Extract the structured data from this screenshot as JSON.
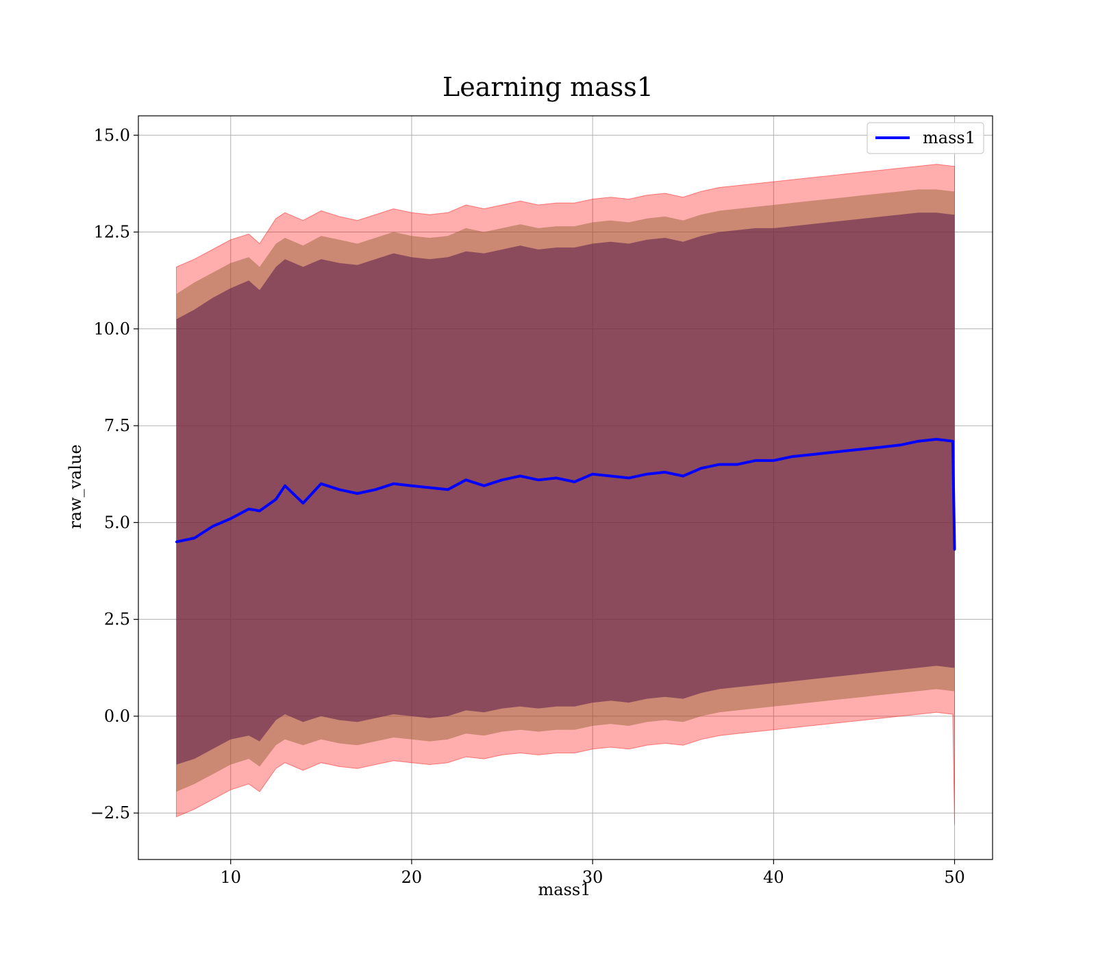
{
  "chart_data": {
    "type": "line",
    "title": "Learning mass1",
    "xlabel": "mass1",
    "ylabel": "raw_value",
    "xlim": [
      4.9,
      52.1
    ],
    "ylim": [
      -3.7,
      15.5
    ],
    "xticks": [
      10,
      20,
      30,
      40,
      50
    ],
    "yticks": [
      -2.5,
      0.0,
      2.5,
      5.0,
      7.5,
      10.0,
      12.5,
      15.0
    ],
    "ytick_labels": [
      "−2.5",
      "0.0",
      "2.5",
      "5.0",
      "7.5",
      "10.0",
      "12.5",
      "15.0"
    ],
    "grid": true,
    "legend": {
      "position": "top-right",
      "entries": [
        "mass1"
      ]
    },
    "colors": {
      "line": "#0000ff",
      "band_outer": "#ff0000",
      "band_middle": "#8b5a2b",
      "band_inner": "#5a1a4a"
    },
    "x": [
      7.0,
      8.0,
      9.0,
      10.0,
      11.0,
      11.6,
      12.5,
      13.0,
      14.0,
      15.0,
      16.0,
      17.0,
      18.0,
      19.0,
      20.0,
      21.0,
      22.0,
      23.0,
      24.0,
      25.0,
      26.0,
      27.0,
      28.0,
      29.0,
      30.0,
      31.0,
      32.0,
      33.0,
      34.0,
      35.0,
      36.0,
      37.0,
      38.0,
      39.0,
      40.0,
      41.0,
      42.0,
      43.0,
      44.0,
      45.0,
      46.0,
      47.0,
      48.0,
      49.0,
      49.9,
      50.0
    ],
    "series": [
      {
        "name": "mass1",
        "values": [
          4.5,
          4.6,
          4.9,
          5.1,
          5.35,
          5.3,
          5.6,
          5.95,
          5.5,
          6.0,
          5.85,
          5.75,
          5.85,
          6.0,
          5.95,
          5.9,
          5.85,
          6.1,
          5.95,
          6.1,
          6.2,
          6.1,
          6.15,
          6.05,
          6.25,
          6.2,
          6.15,
          6.25,
          6.3,
          6.2,
          6.4,
          6.5,
          6.5,
          6.6,
          6.6,
          6.7,
          6.75,
          6.8,
          6.85,
          6.9,
          6.95,
          7.0,
          7.1,
          7.15,
          7.1,
          4.3
        ],
        "band_outer_upper": [
          11.6,
          11.8,
          12.05,
          12.3,
          12.45,
          12.2,
          12.85,
          13.0,
          12.8,
          13.05,
          12.9,
          12.8,
          12.95,
          13.1,
          13.0,
          12.95,
          13.0,
          13.2,
          13.1,
          13.2,
          13.3,
          13.2,
          13.25,
          13.25,
          13.35,
          13.4,
          13.35,
          13.45,
          13.5,
          13.4,
          13.55,
          13.65,
          13.7,
          13.75,
          13.8,
          13.85,
          13.9,
          13.95,
          14.0,
          14.05,
          14.1,
          14.15,
          14.2,
          14.25,
          14.2,
          14.2
        ],
        "band_middle_upper": [
          10.9,
          11.2,
          11.45,
          11.7,
          11.85,
          11.6,
          12.2,
          12.35,
          12.15,
          12.4,
          12.3,
          12.2,
          12.35,
          12.5,
          12.4,
          12.35,
          12.4,
          12.6,
          12.5,
          12.6,
          12.7,
          12.6,
          12.65,
          12.65,
          12.75,
          12.8,
          12.75,
          12.85,
          12.9,
          12.8,
          12.95,
          13.05,
          13.1,
          13.15,
          13.2,
          13.25,
          13.3,
          13.35,
          13.4,
          13.45,
          13.5,
          13.55,
          13.6,
          13.6,
          13.55,
          13.55
        ],
        "band_inner_upper": [
          10.25,
          10.5,
          10.8,
          11.05,
          11.25,
          11.0,
          11.6,
          11.8,
          11.6,
          11.8,
          11.7,
          11.65,
          11.8,
          11.95,
          11.85,
          11.8,
          11.85,
          12.0,
          11.95,
          12.05,
          12.15,
          12.05,
          12.1,
          12.1,
          12.2,
          12.25,
          12.2,
          12.3,
          12.35,
          12.25,
          12.4,
          12.5,
          12.55,
          12.6,
          12.6,
          12.65,
          12.7,
          12.75,
          12.8,
          12.85,
          12.9,
          12.95,
          13.0,
          13.0,
          12.95,
          12.95
        ],
        "band_inner_lower": [
          -1.25,
          -1.1,
          -0.85,
          -0.6,
          -0.5,
          -0.65,
          -0.1,
          0.05,
          -0.15,
          0.0,
          -0.1,
          -0.15,
          -0.05,
          0.05,
          0.0,
          -0.05,
          0.0,
          0.15,
          0.1,
          0.2,
          0.25,
          0.2,
          0.25,
          0.25,
          0.35,
          0.4,
          0.35,
          0.45,
          0.5,
          0.45,
          0.6,
          0.7,
          0.75,
          0.8,
          0.85,
          0.9,
          0.95,
          1.0,
          1.05,
          1.1,
          1.15,
          1.2,
          1.25,
          1.3,
          1.25,
          1.25
        ],
        "band_middle_lower": [
          -1.95,
          -1.75,
          -1.5,
          -1.25,
          -1.1,
          -1.3,
          -0.75,
          -0.6,
          -0.75,
          -0.6,
          -0.7,
          -0.75,
          -0.65,
          -0.55,
          -0.6,
          -0.65,
          -0.6,
          -0.45,
          -0.5,
          -0.4,
          -0.35,
          -0.4,
          -0.35,
          -0.35,
          -0.25,
          -0.2,
          -0.25,
          -0.15,
          -0.1,
          -0.15,
          0.0,
          0.1,
          0.15,
          0.2,
          0.25,
          0.3,
          0.35,
          0.4,
          0.45,
          0.5,
          0.55,
          0.6,
          0.65,
          0.7,
          0.65,
          0.65
        ],
        "band_outer_lower": [
          -2.6,
          -2.4,
          -2.15,
          -1.9,
          -1.75,
          -1.95,
          -1.35,
          -1.2,
          -1.4,
          -1.2,
          -1.3,
          -1.35,
          -1.25,
          -1.15,
          -1.2,
          -1.25,
          -1.2,
          -1.05,
          -1.1,
          -1.0,
          -0.95,
          -1.0,
          -0.95,
          -0.95,
          -0.85,
          -0.8,
          -0.85,
          -0.75,
          -0.7,
          -0.75,
          -0.6,
          -0.5,
          -0.45,
          -0.4,
          -0.35,
          -0.3,
          -0.25,
          -0.2,
          -0.15,
          -0.1,
          -0.05,
          0.0,
          0.05,
          0.1,
          0.05,
          -2.8
        ]
      }
    ]
  }
}
